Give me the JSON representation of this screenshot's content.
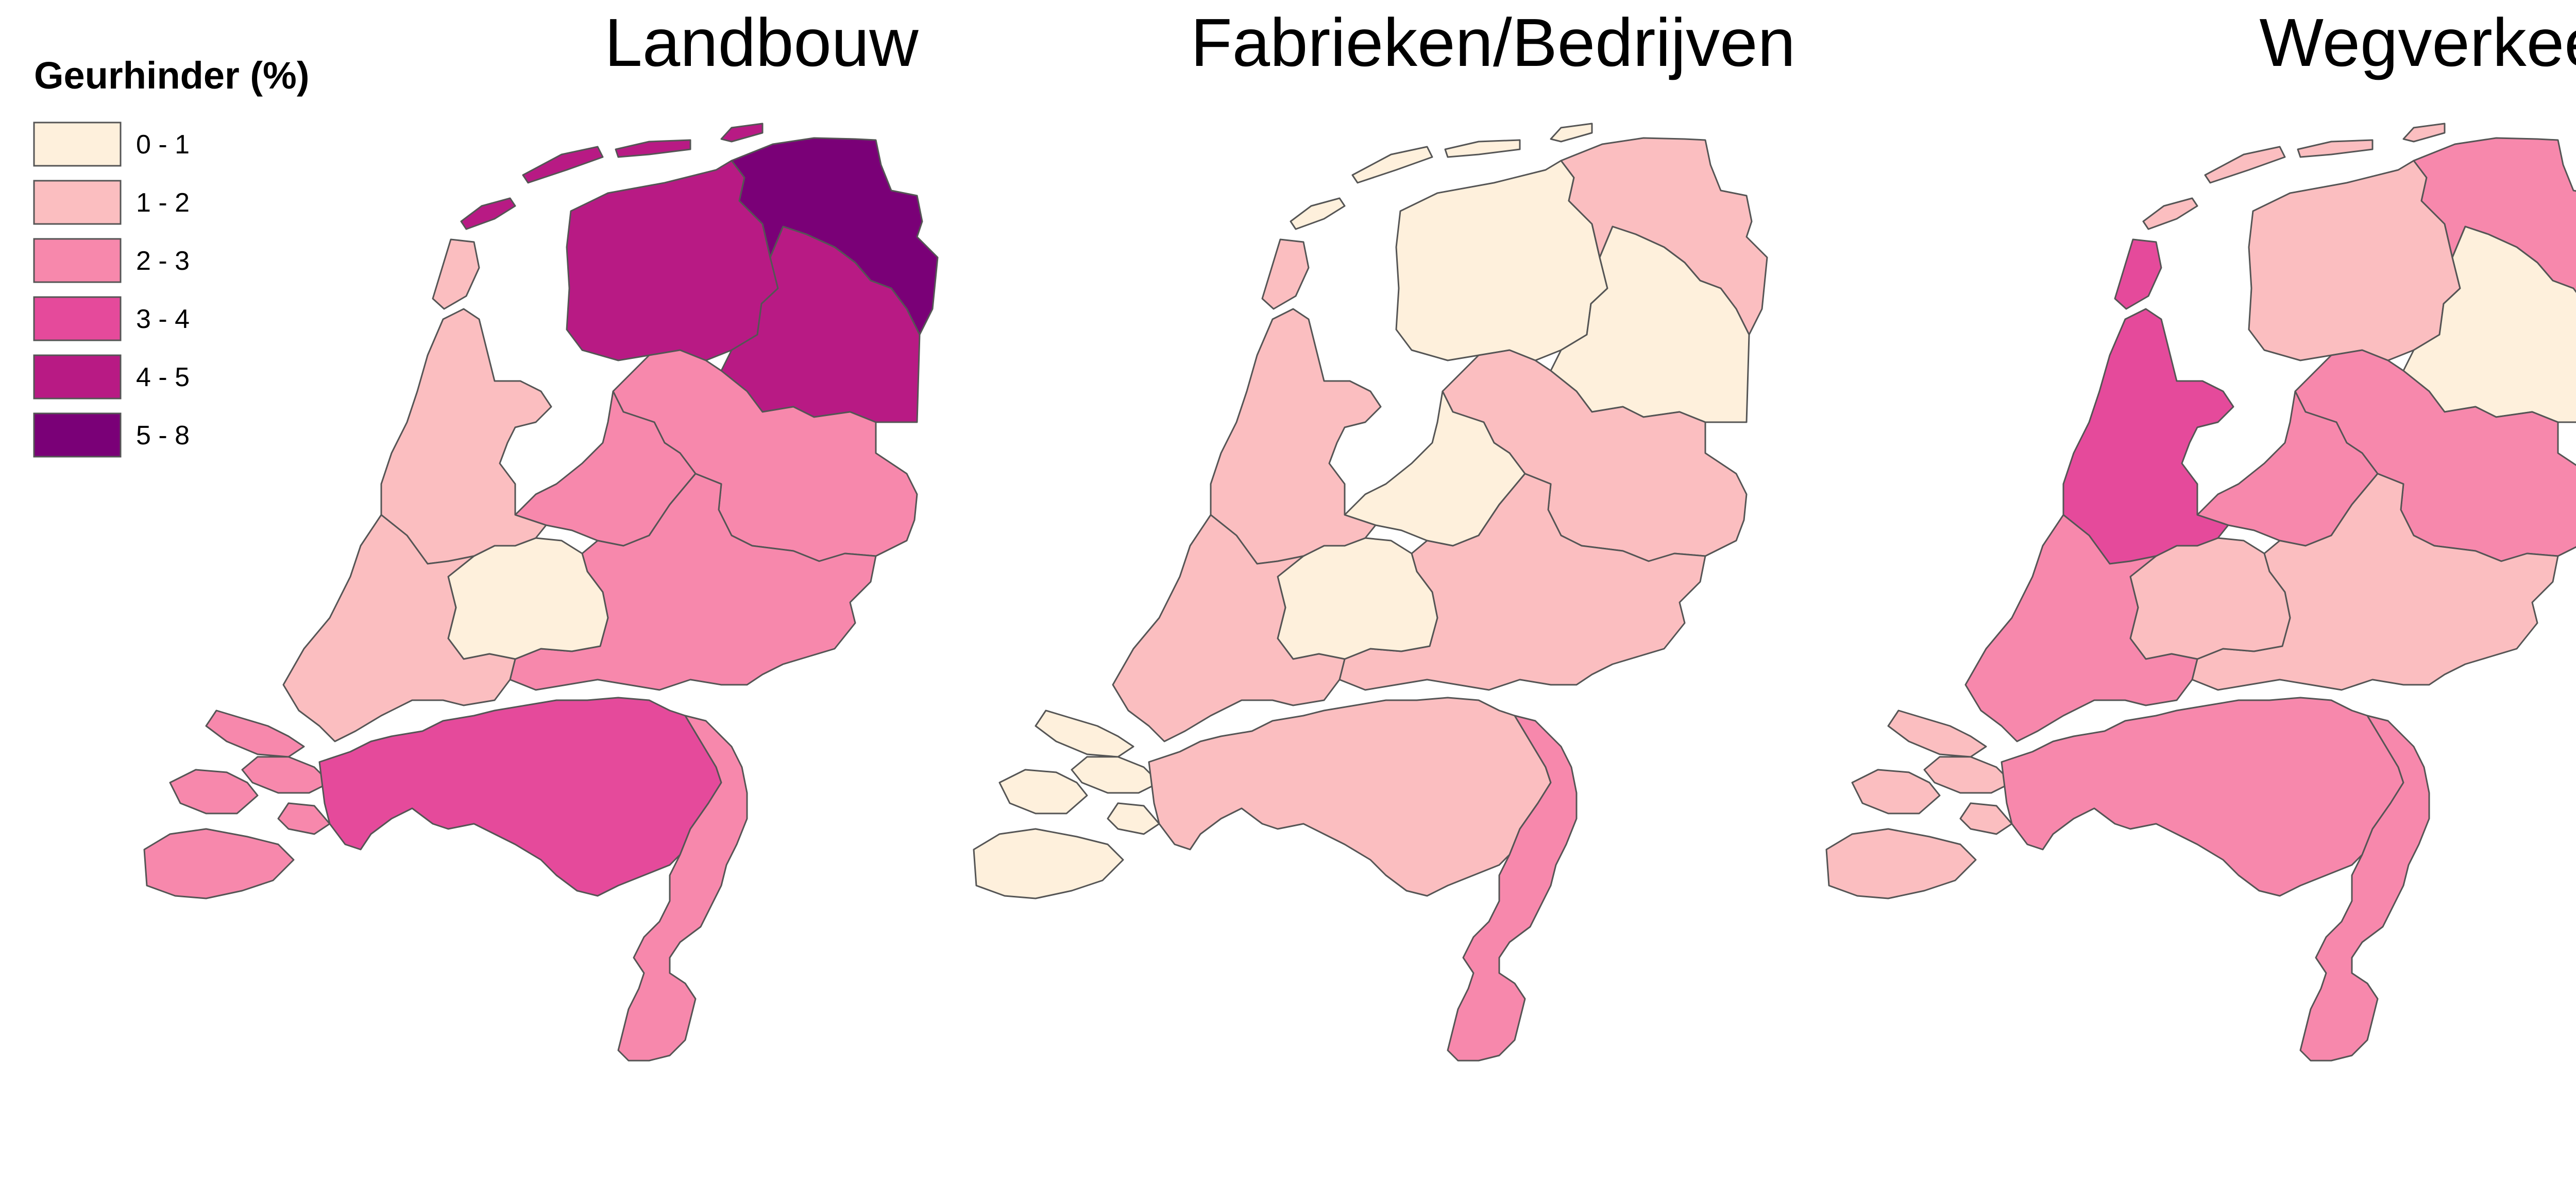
{
  "legend": {
    "title": "Geurhinder (%)",
    "classes": [
      {
        "label": "0 - 1",
        "color": "#FEF0DC"
      },
      {
        "label": "1 - 2",
        "color": "#FBBEC0"
      },
      {
        "label": "2 - 3",
        "color": "#F788AC"
      },
      {
        "label": "3 - 4",
        "color": "#E54A9B"
      },
      {
        "label": "4 - 5",
        "color": "#B81A84"
      },
      {
        "label": "5 - 8",
        "color": "#7A0077"
      }
    ]
  },
  "maps": [
    {
      "title": "Landbouw",
      "classes": {
        "friesland": 4,
        "groningen": 5,
        "drenthe": 4,
        "overijssel": 2,
        "flevoland": 2,
        "gelderland": 2,
        "utrecht": 0,
        "noord-holland": 1,
        "zuid-holland": 1,
        "zeeland": 2,
        "noord-brabant": 3,
        "limburg": 2,
        "wadden": 4,
        "texel": 1
      }
    },
    {
      "title": "Fabrieken/Bedrijven",
      "classes": {
        "friesland": 0,
        "groningen": 1,
        "drenthe": 0,
        "overijssel": 1,
        "flevoland": 0,
        "gelderland": 1,
        "utrecht": 0,
        "noord-holland": 1,
        "zuid-holland": 1,
        "zeeland": 0,
        "noord-brabant": 1,
        "limburg": 2,
        "wadden": 0,
        "texel": 1
      }
    },
    {
      "title": "Wegverkeer",
      "classes": {
        "friesland": 1,
        "groningen": 2,
        "drenthe": 0,
        "overijssel": 2,
        "flevoland": 2,
        "gelderland": 1,
        "utrecht": 1,
        "noord-holland": 3,
        "zuid-holland": 2,
        "zeeland": 1,
        "noord-brabant": 2,
        "limburg": 2,
        "wadden": 1,
        "texel": 3
      }
    }
  ]
}
